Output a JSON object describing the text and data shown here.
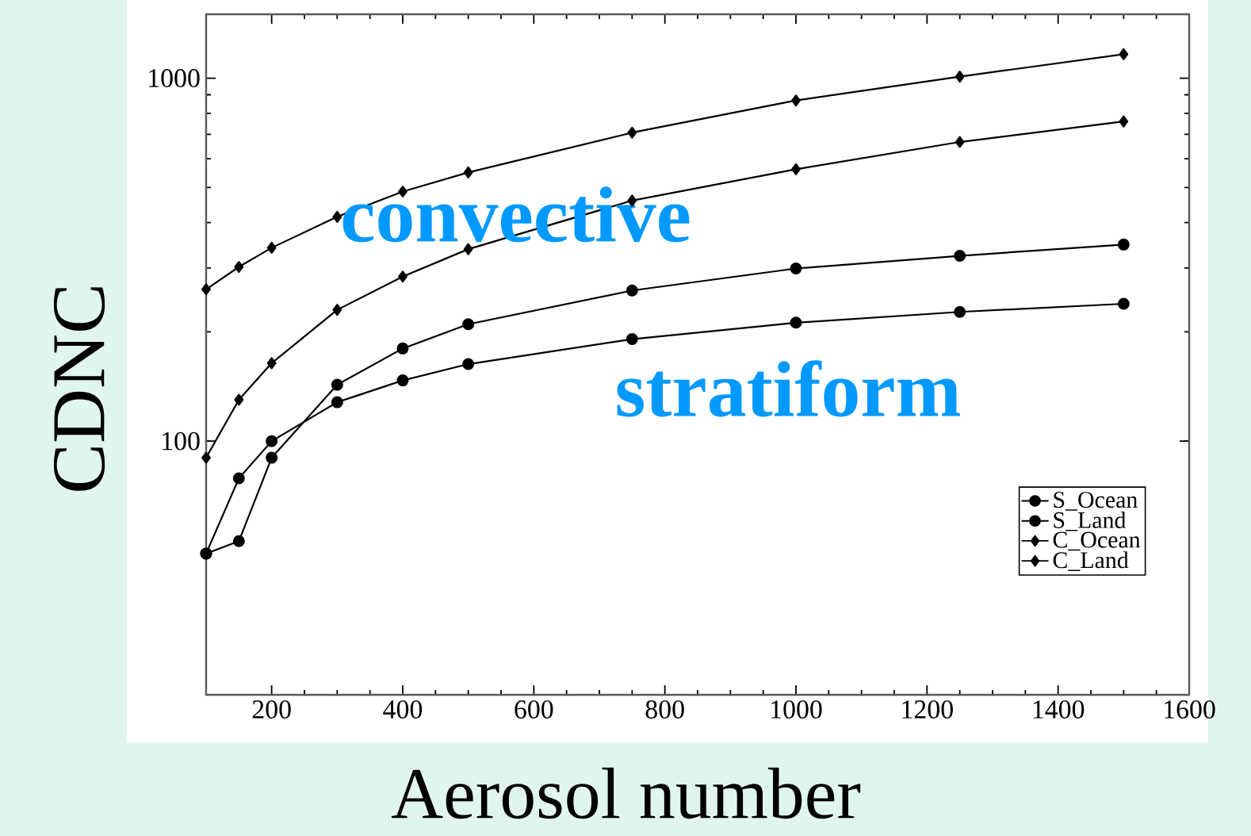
{
  "chart_data": {
    "type": "line",
    "xlabel": "Aerosol number",
    "ylabel": "CDNC",
    "x": [
      100,
      150,
      200,
      300,
      400,
      500,
      750,
      1000,
      1250,
      1500
    ],
    "series": [
      {
        "name": "S_Ocean",
        "color": "#000000",
        "marker": "circle",
        "values": [
          49,
          79,
          100,
          128,
          147,
          163,
          191,
          212,
          227,
          239
        ]
      },
      {
        "name": "S_Land",
        "color": "#000000",
        "marker": "circle",
        "values": [
          49,
          53,
          90,
          143,
          180,
          210,
          260,
          299,
          324,
          348
        ]
      },
      {
        "name": "C_Ocean",
        "color": "#000000",
        "marker": "diamond",
        "values": [
          90,
          130,
          164,
          230,
          284,
          338,
          460,
          561,
          667,
          760
        ]
      },
      {
        "name": "C_Land",
        "color": "#000000",
        "marker": "diamond",
        "values": [
          262,
          302,
          341,
          415,
          487,
          550,
          708,
          868,
          1010,
          1164
        ]
      }
    ],
    "log": "y",
    "xlim": [
      100,
      1600
    ],
    "ylim": [
      20,
      1500
    ],
    "xticks": [
      200,
      400,
      600,
      800,
      1000,
      1200,
      1400,
      1600
    ],
    "yticks": [
      100,
      1000
    ],
    "annotations": [
      "convective",
      "stratiform"
    ],
    "legend": "bottom right",
    "grid": false,
    "line_style": "solid"
  }
}
